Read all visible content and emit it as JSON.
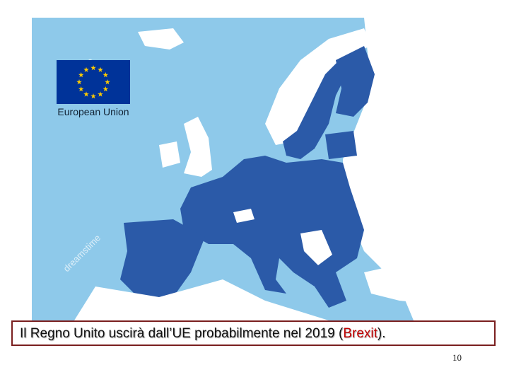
{
  "map": {
    "flag_label": "European Union",
    "watermark": "dreamstime"
  },
  "caption": {
    "before": "Il Regno Unito uscirà dall’UE probabilmente nel 2019 (",
    "highlight": "Brexit",
    "after": ")."
  },
  "page_number": "10"
}
